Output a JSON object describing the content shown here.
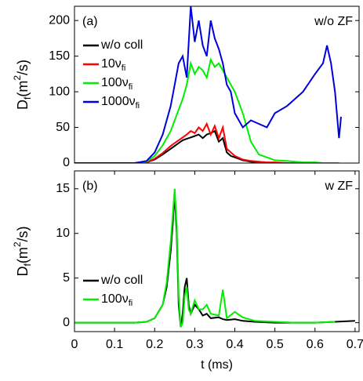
{
  "chart_data": [
    {
      "type": "line",
      "panel_label": "(a)",
      "annotation": "w/o ZF",
      "ylabel": {
        "base": "D",
        "sub": "f",
        "mid": "(m",
        "sup": "2",
        "end": "/s)"
      },
      "x": [
        0,
        0.05,
        0.1,
        0.15,
        0.18,
        0.2,
        0.22,
        0.24,
        0.25,
        0.26,
        0.27,
        0.28,
        0.29,
        0.3,
        0.31,
        0.32,
        0.33,
        0.34,
        0.35,
        0.36,
        0.37,
        0.38,
        0.39,
        0.4,
        0.42,
        0.44,
        0.46,
        0.48,
        0.5,
        0.53,
        0.55,
        0.57,
        0.6,
        0.62,
        0.63,
        0.64,
        0.65,
        0.66,
        0.665
      ],
      "series": [
        {
          "name": "w/o coll",
          "color": "#000000",
          "values": [
            0,
            0,
            0,
            0,
            1,
            5,
            12,
            20,
            24,
            28,
            32,
            34,
            36,
            38,
            40,
            35,
            40,
            42,
            45,
            30,
            35,
            15,
            10,
            8,
            4,
            2,
            1,
            1,
            0,
            0,
            0,
            0,
            0,
            0,
            0,
            0,
            0,
            0,
            null
          ]
        },
        {
          "name": "10ν",
          "name_sub": "fi",
          "color": "#ff0000",
          "values": [
            0,
            0,
            0,
            0,
            1,
            6,
            14,
            24,
            28,
            32,
            36,
            40,
            45,
            42,
            50,
            45,
            55,
            40,
            52,
            35,
            50,
            20,
            15,
            10,
            5,
            3,
            2,
            1,
            1,
            0,
            0,
            0,
            0,
            0,
            0,
            0,
            0,
            0,
            null
          ]
        },
        {
          "name": "100ν",
          "name_sub": "fi",
          "color": "#00ee00",
          "values": [
            0,
            0,
            0,
            0,
            2,
            10,
            25,
            45,
            60,
            75,
            90,
            110,
            140,
            125,
            135,
            130,
            120,
            145,
            135,
            140,
            130,
            120,
            110,
            100,
            70,
            30,
            12,
            8,
            4,
            3,
            2,
            1,
            1,
            0,
            0,
            0,
            0,
            0,
            null
          ]
        },
        {
          "name": "1000ν",
          "name_sub": "fi",
          "color": "#0000dd",
          "values": [
            0,
            0,
            0,
            0,
            3,
            15,
            40,
            80,
            110,
            140,
            150,
            120,
            220,
            170,
            200,
            165,
            150,
            200,
            175,
            160,
            140,
            110,
            100,
            70,
            50,
            60,
            55,
            50,
            70,
            80,
            90,
            100,
            125,
            140,
            165,
            140,
            100,
            35,
            65
          ]
        }
      ],
      "xlim": [
        0,
        0.71
      ],
      "ylim": [
        0,
        220
      ],
      "yticks": [
        0,
        50,
        100,
        150,
        200
      ]
    },
    {
      "type": "line",
      "panel_label": "(b)",
      "annotation": "w ZF",
      "xlabel": "t (ms)",
      "ylabel": {
        "base": "D",
        "sub": "f",
        "mid": "(m",
        "sup": "2",
        "end": "/s)"
      },
      "x": [
        0,
        0.1,
        0.15,
        0.18,
        0.2,
        0.22,
        0.23,
        0.24,
        0.245,
        0.25,
        0.255,
        0.26,
        0.265,
        0.27,
        0.275,
        0.28,
        0.285,
        0.29,
        0.3,
        0.31,
        0.32,
        0.33,
        0.34,
        0.36,
        0.37,
        0.38,
        0.4,
        0.42,
        0.45,
        0.5,
        0.55,
        0.6,
        0.65,
        0.7
      ],
      "series": [
        {
          "name": "w/o coll",
          "color": "#000000",
          "values": [
            0,
            0,
            0,
            0.1,
            0.5,
            2,
            4,
            8,
            11,
            14.5,
            10,
            2,
            -0.5,
            1,
            4,
            5,
            2,
            1,
            2,
            1.5,
            0.8,
            1,
            0.5,
            0.6,
            0.4,
            0.3,
            0.4,
            0.2,
            0.1,
            0,
            0,
            0,
            0.1,
            0.2
          ]
        },
        {
          "name": "100ν",
          "name_sub": "fi",
          "color": "#00ee00",
          "values": [
            0,
            0,
            0,
            0.1,
            0.5,
            2,
            4.5,
            9,
            12,
            15,
            11,
            3,
            -0.5,
            0,
            3,
            4,
            1.5,
            1,
            2.5,
            1.5,
            1.5,
            2,
            1,
            0.8,
            3.7,
            0.5,
            1.2,
            0.6,
            0.2,
            0.1,
            0,
            0,
            0.1,
            null
          ]
        }
      ],
      "xlim": [
        0,
        0.71
      ],
      "ylim": [
        -1,
        17
      ],
      "yticks": [
        0,
        5,
        10,
        15
      ],
      "xticks": [
        0,
        0.1,
        0.2,
        0.3,
        0.4,
        0.5,
        0.6,
        0.7
      ]
    }
  ]
}
